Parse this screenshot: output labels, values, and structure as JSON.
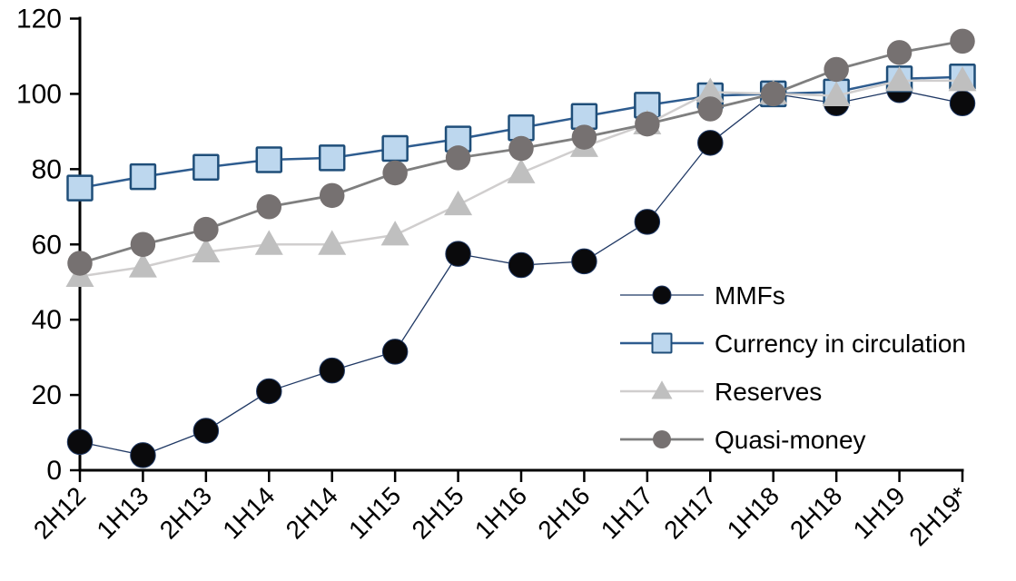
{
  "chart_data": {
    "type": "line",
    "title": "",
    "xlabel": "",
    "ylabel": "",
    "ylim": [
      0,
      120
    ],
    "yticks": [
      0,
      20,
      40,
      60,
      80,
      100,
      120
    ],
    "grid": false,
    "legend_position": "inside-right",
    "x_tick_rotation": 45,
    "categories": [
      "2H12",
      "1H13",
      "2H13",
      "1H14",
      "2H14",
      "1H15",
      "2H15",
      "1H16",
      "2H16",
      "1H17",
      "2H17",
      "1H18",
      "2H18",
      "1H19",
      "2H19*"
    ],
    "series": [
      {
        "name": "MMFs",
        "marker": "circle",
        "marker_fill": "#0a0a0c",
        "marker_stroke": "#1f3864",
        "line_color": "#1f3864",
        "line_width": 1.3,
        "values": [
          7.5,
          4,
          10.5,
          21,
          26.5,
          31.5,
          57.5,
          54.5,
          55.5,
          66,
          87,
          100,
          97.5,
          101,
          97.5
        ]
      },
      {
        "name": "Currency in circulation",
        "marker": "square",
        "marker_fill": "#bdd7ee",
        "marker_stroke": "#1f4e79",
        "line_color": "#2e5c8f",
        "line_width": 2.5,
        "values": [
          75,
          78,
          80.5,
          82.5,
          83,
          85.5,
          88,
          91,
          94,
          97,
          99.5,
          100,
          100.5,
          104,
          104.5
        ]
      },
      {
        "name": "Reserves",
        "marker": "triangle",
        "marker_fill": "#bfbfbf",
        "marker_stroke": "none",
        "line_color": "#d0cece",
        "line_width": 2.5,
        "values": [
          51.5,
          54,
          58,
          60,
          60,
          62.5,
          70.5,
          79,
          86,
          92,
          100.5,
          100,
          99.5,
          103.5,
          103.5
        ]
      },
      {
        "name": "Quasi-money",
        "marker": "circle",
        "marker_fill": "#767171",
        "marker_stroke": "none",
        "line_color": "#7f7f7f",
        "line_width": 2.8,
        "values": [
          55,
          60,
          64,
          70,
          73,
          79,
          83,
          85.5,
          88.5,
          92,
          96,
          100,
          106.5,
          111,
          114
        ]
      }
    ]
  }
}
